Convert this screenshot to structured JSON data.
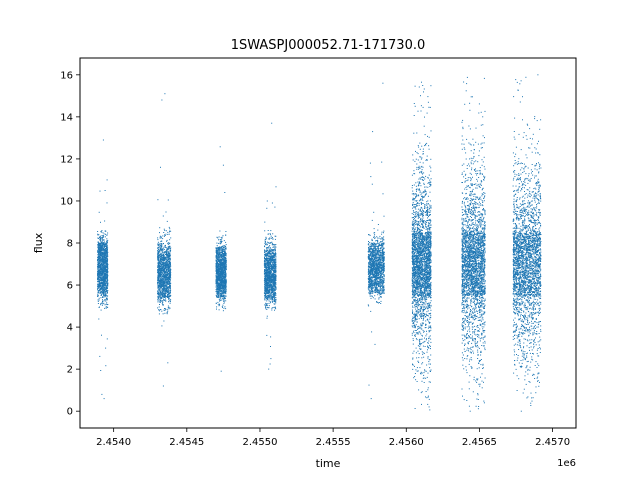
{
  "chart_data": {
    "type": "scatter",
    "title": "1SWASPJ000052.71-171730.0",
    "xlabel": "time",
    "ylabel": "flux",
    "x_offset_label": "1e6",
    "xlim": [
      2453770,
      2457160
    ],
    "ylim": [
      -0.8,
      16.8
    ],
    "x_ticks": [
      2.454,
      2.4545,
      2.455,
      2.4555,
      2.456,
      2.4565,
      2.457
    ],
    "x_tick_labels": [
      "2.4540",
      "2.4545",
      "2.4550",
      "2.4555",
      "2.4560",
      "2.4565",
      "2.4570"
    ],
    "y_ticks": [
      0,
      2,
      4,
      6,
      8,
      10,
      12,
      14,
      16
    ],
    "y_tick_labels": [
      "0",
      "2",
      "4",
      "6",
      "8",
      "10",
      "12",
      "14",
      "16"
    ],
    "grid": false,
    "color": "#1f77b4",
    "clusters": [
      {
        "x_start": 2453890,
        "x_end": 2453960,
        "y_center": 6.8,
        "y_spread": 1.1,
        "y_min": 4.6,
        "y_max": 8.6,
        "outliers": [
          [
            2453935,
            0.6
          ],
          [
            2453920,
            0.8
          ],
          [
            2453930,
            12.9
          ],
          [
            2453955,
            11.0
          ],
          [
            2453945,
            3.0
          ]
        ]
      },
      {
        "x_start": 2454300,
        "x_end": 2454390,
        "y_center": 6.6,
        "y_spread": 1.1,
        "y_min": 4.6,
        "y_max": 8.8,
        "outliers": [
          [
            2454330,
            14.8
          ],
          [
            2454350,
            15.1
          ],
          [
            2454340,
            1.2
          ],
          [
            2454370,
            2.3
          ],
          [
            2454320,
            11.6
          ]
        ]
      },
      {
        "x_start": 2454700,
        "x_end": 2454770,
        "y_center": 6.6,
        "y_spread": 0.9,
        "y_min": 4.8,
        "y_max": 8.4,
        "outliers": [
          [
            2454750,
            11.7
          ],
          [
            2454735,
            1.9
          ],
          [
            2454760,
            10.4
          ]
        ]
      },
      {
        "x_start": 2455030,
        "x_end": 2455110,
        "y_center": 6.5,
        "y_spread": 1.0,
        "y_min": 4.8,
        "y_max": 8.8,
        "outliers": [
          [
            2455080,
            13.7
          ],
          [
            2455060,
            2.0
          ],
          [
            2455075,
            2.5
          ],
          [
            2455050,
            10.0
          ]
        ]
      },
      {
        "x_start": 2455740,
        "x_end": 2455850,
        "y_center": 6.8,
        "y_spread": 0.9,
        "y_min": 5.0,
        "y_max": 8.8,
        "outliers": [
          [
            2455770,
            13.3
          ],
          [
            2455760,
            0.6
          ],
          [
            2455840,
            15.6
          ],
          [
            2455755,
            11.8
          ]
        ]
      },
      {
        "x_start": 2456040,
        "x_end": 2456170,
        "y_center": 7.0,
        "y_spread": 2.2,
        "y_min": 0.0,
        "y_max": 16.0,
        "outliers": []
      },
      {
        "x_start": 2456380,
        "x_end": 2456540,
        "y_center": 7.0,
        "y_spread": 2.3,
        "y_min": 0.0,
        "y_max": 16.0,
        "outliers": []
      },
      {
        "x_start": 2456730,
        "x_end": 2456920,
        "y_center": 7.0,
        "y_spread": 2.4,
        "y_min": 0.0,
        "y_max": 16.0,
        "outliers": []
      }
    ]
  }
}
